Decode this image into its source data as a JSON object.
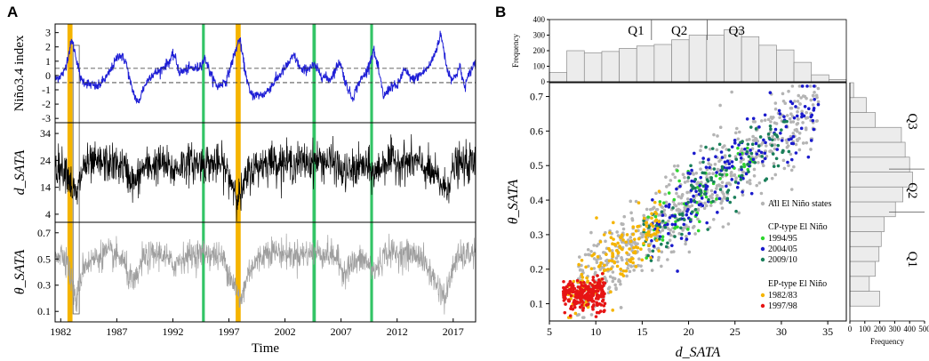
{
  "panels": {
    "a_label": "A",
    "b_label": "B"
  },
  "chart_data": [
    {
      "type": "line",
      "panel": "A",
      "x_axis": {
        "label": "Time",
        "ticks": [
          "1982",
          "1987",
          "1992",
          "1997",
          "2002",
          "2007",
          "2012",
          "2017"
        ],
        "range": [
          1981.5,
          2019.0
        ]
      },
      "subplots": [
        {
          "ylabel": "Niño3.4 index",
          "yticks": [
            "3",
            "2",
            "1",
            "0",
            "-1",
            "-2",
            "-3"
          ],
          "ylim": [
            -3.3,
            3.6
          ],
          "color": "#1f1fd6",
          "reference_lines": [
            0.5,
            -0.5
          ],
          "anchors": [
            [
              1981.5,
              -0.3
            ],
            [
              1982.3,
              0.2
            ],
            [
              1982.7,
              1.5
            ],
            [
              1983.0,
              2.5
            ],
            [
              1983.4,
              1.2
            ],
            [
              1983.8,
              -0.3
            ],
            [
              1984.5,
              -0.6
            ],
            [
              1985.3,
              -0.8
            ],
            [
              1986.2,
              0.0
            ],
            [
              1987.2,
              1.5
            ],
            [
              1987.8,
              1.0
            ],
            [
              1988.3,
              -0.8
            ],
            [
              1988.9,
              -2.0
            ],
            [
              1989.3,
              -1.0
            ],
            [
              1990.0,
              0.0
            ],
            [
              1990.8,
              0.3
            ],
            [
              1991.7,
              1.0
            ],
            [
              1992.1,
              1.5
            ],
            [
              1992.6,
              0.2
            ],
            [
              1993.5,
              0.5
            ],
            [
              1994.2,
              0.5
            ],
            [
              1994.9,
              1.2
            ],
            [
              1995.4,
              0.0
            ],
            [
              1996.0,
              -0.8
            ],
            [
              1996.8,
              -0.3
            ],
            [
              1997.3,
              1.0
            ],
            [
              1997.7,
              2.0
            ],
            [
              1997.95,
              2.6
            ],
            [
              1998.4,
              0.5
            ],
            [
              1998.9,
              -1.3
            ],
            [
              1999.5,
              -1.4
            ],
            [
              2000.2,
              -1.3
            ],
            [
              2001.0,
              -0.5
            ],
            [
              2002.0,
              0.5
            ],
            [
              2002.8,
              1.4
            ],
            [
              2003.5,
              0.3
            ],
            [
              2004.6,
              0.7
            ],
            [
              2005.3,
              0.0
            ],
            [
              2006.0,
              -0.3
            ],
            [
              2006.9,
              1.0
            ],
            [
              2007.4,
              -0.5
            ],
            [
              2008.0,
              -1.6
            ],
            [
              2008.6,
              -0.5
            ],
            [
              2009.3,
              0.3
            ],
            [
              2009.9,
              1.8
            ],
            [
              2010.3,
              0.5
            ],
            [
              2010.8,
              -1.5
            ],
            [
              2011.5,
              -0.7
            ],
            [
              2012.0,
              -0.8
            ],
            [
              2012.6,
              0.4
            ],
            [
              2013.4,
              -0.3
            ],
            [
              2014.3,
              0.2
            ],
            [
              2014.9,
              0.7
            ],
            [
              2015.4,
              1.6
            ],
            [
              2015.9,
              2.9
            ],
            [
              2016.5,
              0.3
            ],
            [
              2017.0,
              -0.3
            ],
            [
              2017.6,
              0.6
            ],
            [
              2018.0,
              -0.8
            ],
            [
              2018.6,
              0.4
            ],
            [
              2019.0,
              1.0
            ]
          ]
        },
        {
          "ylabel": "d_SATA",
          "yticks": [
            "34",
            "24",
            "14",
            "4"
          ],
          "ylim": [
            1,
            38
          ],
          "color": "#000000",
          "anchors": [
            [
              1981.5,
              22
            ],
            [
              1982.5,
              21
            ],
            [
              1983.0,
              14
            ],
            [
              1983.4,
              10
            ],
            [
              1984.0,
              22
            ],
            [
              1986.0,
              23
            ],
            [
              1987.5,
              22
            ],
            [
              1988.0,
              19
            ],
            [
              1988.6,
              15
            ],
            [
              1989.3,
              21
            ],
            [
              1991.0,
              23
            ],
            [
              1992.0,
              20
            ],
            [
              1993.0,
              23
            ],
            [
              1995.0,
              23
            ],
            [
              1996.5,
              22
            ],
            [
              1997.6,
              13
            ],
            [
              1998.0,
              10
            ],
            [
              1998.8,
              20
            ],
            [
              2000.5,
              24
            ],
            [
              2002.5,
              23
            ],
            [
              2005.0,
              24
            ],
            [
              2006.5,
              23
            ],
            [
              2007.2,
              19
            ],
            [
              2007.8,
              20
            ],
            [
              2009.0,
              22
            ],
            [
              2010.0,
              19
            ],
            [
              2011.0,
              24
            ],
            [
              2014.0,
              23
            ],
            [
              2015.6,
              17
            ],
            [
              2016.3,
              13
            ],
            [
              2017.2,
              22
            ],
            [
              2019.0,
              23
            ]
          ]
        },
        {
          "ylabel": "θ_SATA",
          "yticks": [
            "0.7",
            "0.5",
            "0.3",
            "0.1"
          ],
          "ylim": [
            0.02,
            0.78
          ],
          "color": "#9e9e9e",
          "anchors": [
            [
              1981.5,
              0.55
            ],
            [
              1982.5,
              0.52
            ],
            [
              1983.0,
              0.3
            ],
            [
              1983.4,
              0.17
            ],
            [
              1984.0,
              0.45
            ],
            [
              1986.0,
              0.55
            ],
            [
              1987.5,
              0.5
            ],
            [
              1988.0,
              0.38
            ],
            [
              1988.6,
              0.3
            ],
            [
              1989.3,
              0.5
            ],
            [
              1991.0,
              0.55
            ],
            [
              1992.0,
              0.45
            ],
            [
              1993.0,
              0.52
            ],
            [
              1995.0,
              0.55
            ],
            [
              1996.5,
              0.5
            ],
            [
              1997.6,
              0.28
            ],
            [
              1998.0,
              0.16
            ],
            [
              1998.8,
              0.42
            ],
            [
              2000.5,
              0.57
            ],
            [
              2002.5,
              0.53
            ],
            [
              2005.0,
              0.55
            ],
            [
              2006.5,
              0.52
            ],
            [
              2007.2,
              0.4
            ],
            [
              2007.8,
              0.45
            ],
            [
              2009.0,
              0.5
            ],
            [
              2010.0,
              0.4
            ],
            [
              2011.0,
              0.55
            ],
            [
              2014.0,
              0.53
            ],
            [
              2015.6,
              0.3
            ],
            [
              2016.3,
              0.2
            ],
            [
              2017.2,
              0.5
            ],
            [
              2019.0,
              0.55
            ]
          ]
        }
      ],
      "highlight_bands": [
        {
          "type": "EP",
          "color": "#f5b400",
          "x": [
            1982.6,
            1983.05
          ]
        },
        {
          "type": "EP",
          "color": "#f5b400",
          "x": [
            1997.6,
            1998.05
          ]
        },
        {
          "type": "CP",
          "color": "#33c466",
          "x": [
            1994.6,
            1994.85
          ]
        },
        {
          "type": "CP",
          "color": "#33c466",
          "x": [
            2004.45,
            2004.75
          ]
        },
        {
          "type": "CP",
          "color": "#33c466",
          "x": [
            2009.6,
            2009.85
          ]
        }
      ],
      "highlight_box": {
        "x": [
          1983.1,
          1983.65
        ]
      }
    },
    {
      "type": "scatter",
      "panel": "B",
      "xlabel": "d_SATA",
      "ylabel": "θ_SATA",
      "xlim": [
        5,
        37
      ],
      "ylim": [
        0.05,
        0.74
      ],
      "xticks": [
        "5",
        "10",
        "15",
        "20",
        "25",
        "30",
        "35"
      ],
      "yticks": [
        "0.1",
        "0.2",
        "0.3",
        "0.4",
        "0.5",
        "0.6",
        "0.7"
      ],
      "legend": {
        "all": {
          "label": "All El Niño states",
          "color": "#b4b4b4"
        },
        "cp_title": "CP-type  El Niño",
        "cp": [
          {
            "label": "1994/95",
            "color": "#2dd62d"
          },
          {
            "label": "2004/05",
            "color": "#1a1acc"
          },
          {
            "label": "2009/10",
            "color": "#1a7f5a"
          }
        ],
        "ep_title": "EP-type  El Niño",
        "ep": [
          {
            "label": "1982/83",
            "color": "#f5b400"
          },
          {
            "label": "1997/98",
            "color": "#e61414"
          }
        ]
      },
      "clusters": [
        {
          "name": "All El Niño states",
          "color": "#b4b4b4",
          "n": 650,
          "x": [
            8,
            34
          ],
          "center": "trend",
          "spread": 0.06
        },
        {
          "name": "1994/95",
          "color": "#2dd62d",
          "n": 60,
          "x": [
            15,
            27
          ],
          "center": "trend",
          "spread": 0.05
        },
        {
          "name": "2004/05",
          "color": "#1a1acc",
          "n": 170,
          "x": [
            16,
            34
          ],
          "center": "trend",
          "spread": 0.055
        },
        {
          "name": "2009/10",
          "color": "#1a7f5a",
          "n": 120,
          "x": [
            15,
            31
          ],
          "center": "trend",
          "spread": 0.05
        },
        {
          "name": "1982/83",
          "color": "#f5b400",
          "n": 170,
          "x": [
            7,
            17
          ],
          "center": "trend",
          "spread": 0.05
        },
        {
          "name": "1997/98",
          "color": "#e61414",
          "n": 230,
          "x": [
            6.5,
            11
          ],
          "center": "trend",
          "spread": 0.025
        }
      ],
      "top_histogram": {
        "ylabel": "Frequency",
        "yticks": [
          "400",
          "300",
          "200",
          "100",
          "0"
        ],
        "ylim": [
          0,
          400
        ],
        "values": [
          60,
          200,
          185,
          195,
          215,
          230,
          240,
          270,
          300,
          300,
          335,
          290,
          235,
          205,
          125,
          45,
          15
        ],
        "bin_range": [
          5,
          37
        ],
        "quartile_labels": [
          "Q1",
          "Q2",
          "Q3"
        ],
        "quartile_bounds": [
          16,
          22
        ]
      },
      "right_histogram": {
        "xlabel": "Frequency",
        "xticks": [
          "0",
          "100",
          "200",
          "300",
          "400",
          "500"
        ],
        "xlim": [
          0,
          500
        ],
        "values": [
          0,
          200,
          130,
          170,
          195,
          210,
          230,
          305,
          355,
          420,
          400,
          370,
          345,
          170,
          110,
          25
        ],
        "bin_range": [
          0.05,
          0.74
        ],
        "quartile_labels": [
          "Q1",
          "Q2",
          "Q3"
        ],
        "quartile_bounds": [
          0.365,
          0.49
        ]
      }
    }
  ]
}
